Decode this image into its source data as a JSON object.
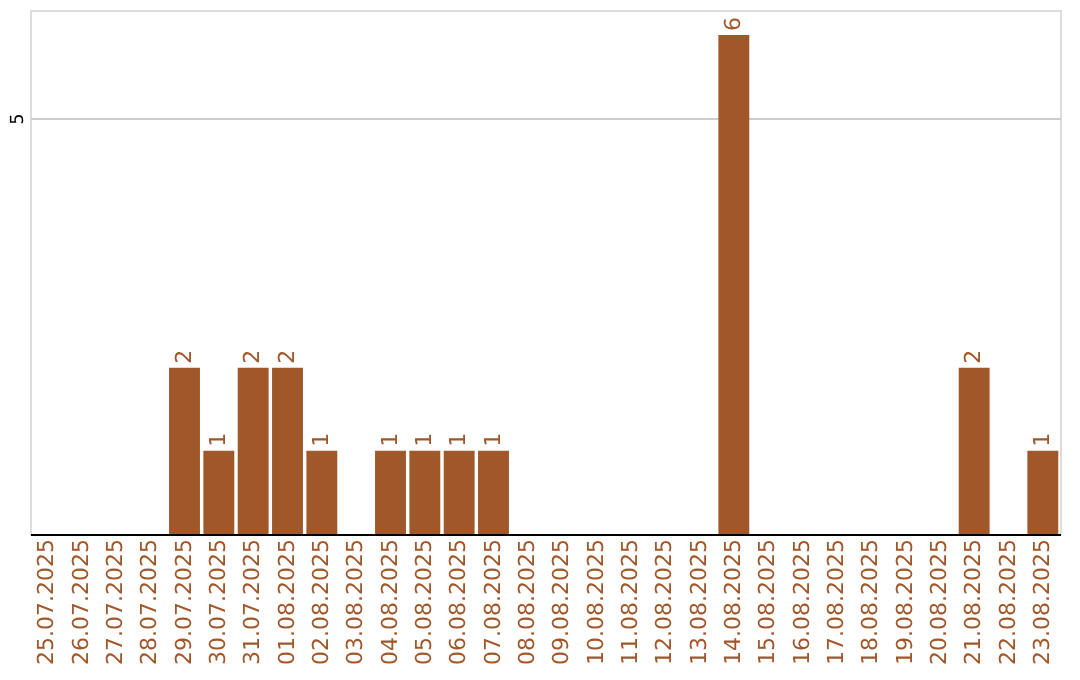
{
  "chart_data": {
    "type": "bar",
    "categories": [
      "25.07.2025",
      "26.07.2025",
      "27.07.2025",
      "28.07.2025",
      "29.07.2025",
      "30.07.2025",
      "31.07.2025",
      "01.08.2025",
      "02.08.2025",
      "03.08.2025",
      "04.08.2025",
      "05.08.2025",
      "06.08.2025",
      "07.08.2025",
      "08.08.2025",
      "09.08.2025",
      "10.08.2025",
      "11.08.2025",
      "12.08.2025",
      "13.08.2025",
      "14.08.2025",
      "15.08.2025",
      "16.08.2025",
      "17.08.2025",
      "18.08.2025",
      "19.08.2025",
      "20.08.2025",
      "21.08.2025",
      "22.08.2025",
      "23.08.2025"
    ],
    "values": [
      0,
      0,
      0,
      0,
      2,
      1,
      2,
      2,
      1,
      0,
      1,
      1,
      1,
      1,
      0,
      0,
      0,
      0,
      0,
      0,
      6,
      0,
      0,
      0,
      0,
      0,
      0,
      2,
      0,
      1
    ],
    "value_labels": [
      null,
      null,
      null,
      null,
      "2",
      "1",
      "2",
      "2",
      "1",
      null,
      "1",
      "1",
      "1",
      "1",
      null,
      null,
      null,
      null,
      null,
      null,
      "6",
      null,
      null,
      null,
      null,
      null,
      null,
      "2",
      null,
      "1"
    ],
    "color": "#a0572a",
    "ylim": [
      0,
      6.3
    ],
    "yticks": [
      5
    ],
    "grid": "y"
  }
}
